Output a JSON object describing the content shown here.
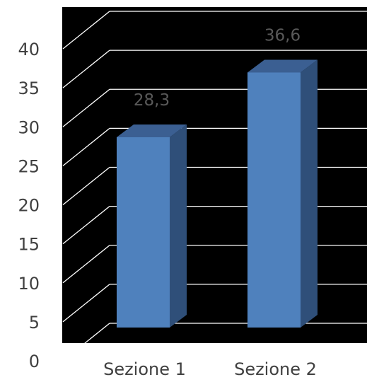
{
  "chart_data": {
    "type": "bar",
    "style": "3d-column",
    "categories": [
      "Sezione 1",
      "Sezione 2"
    ],
    "values": [
      28.3,
      36.6
    ],
    "data_labels": [
      "28,3",
      "36,6"
    ],
    "ylim": [
      0,
      40
    ],
    "yticks": [
      "0",
      "5",
      "10",
      "15",
      "20",
      "25",
      "30",
      "35",
      "40"
    ],
    "grid": true,
    "plot_background": "#000000",
    "gridline_color": "#ffffff",
    "bar_front_color": "#4f81bd",
    "bar_side_color": "#2f4f79",
    "bar_top_color": "#3b5f92"
  }
}
